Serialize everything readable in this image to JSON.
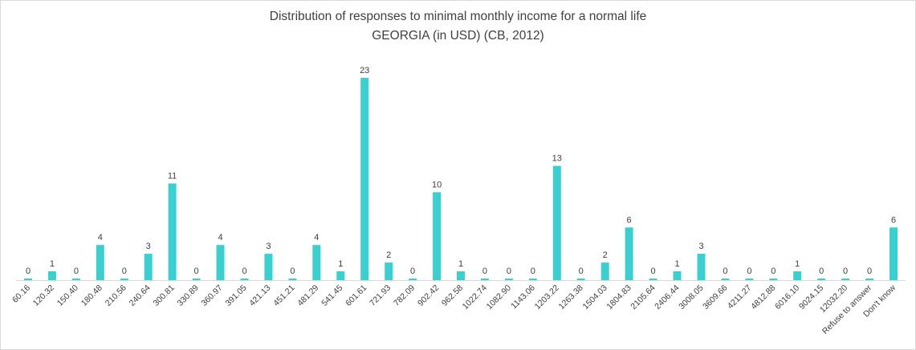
{
  "colors": {
    "bar": "#3ccfcf",
    "axis": "#d9d9d9",
    "text": "#404040"
  },
  "chart_data": {
    "type": "bar",
    "title": "Distribution of responses to minimal monthly income for a normal life",
    "subtitle": "GEORGIA (in USD) (CB, 2012)",
    "xlabel": "",
    "ylabel": "",
    "grid": false,
    "legend": "none",
    "ylim": [
      0,
      23
    ],
    "categories": [
      "60.16",
      "120.32",
      "150.40",
      "180.48",
      "210.56",
      "240.64",
      "300.81",
      "330.89",
      "360.97",
      "391.05",
      "421.13",
      "451.21",
      "481.29",
      "541.45",
      "601.61",
      "721.93",
      "782.09",
      "902.42",
      "962.58",
      "1022.74",
      "1082.90",
      "1143.06",
      "1203.22",
      "1263.38",
      "1504.03",
      "1804.83",
      "2105.64",
      "2406.44",
      "3008.05",
      "3609.66",
      "4211.27",
      "4812.88",
      "6016.10",
      "9024.15",
      "12032.20",
      "Refuse to answer",
      "Don't know"
    ],
    "values": [
      0,
      1,
      0,
      4,
      0,
      3,
      11,
      0,
      4,
      0,
      3,
      0,
      4,
      1,
      23,
      2,
      0,
      10,
      1,
      0,
      0,
      0,
      13,
      0,
      2,
      6,
      0,
      1,
      3,
      0,
      0,
      0,
      1,
      0,
      0,
      0,
      6
    ],
    "data_labels": [
      "0",
      "1",
      "0",
      "4",
      "0",
      "3",
      "11",
      "0",
      "4",
      "0",
      "3",
      "0",
      "4",
      "1",
      "23",
      "2",
      "0",
      "10",
      "1",
      "0",
      "0",
      "0",
      "13",
      "0",
      "2",
      "6",
      "0",
      "1",
      "3",
      "0",
      "0",
      "0",
      "1",
      "0",
      "0",
      "0",
      "6"
    ]
  }
}
